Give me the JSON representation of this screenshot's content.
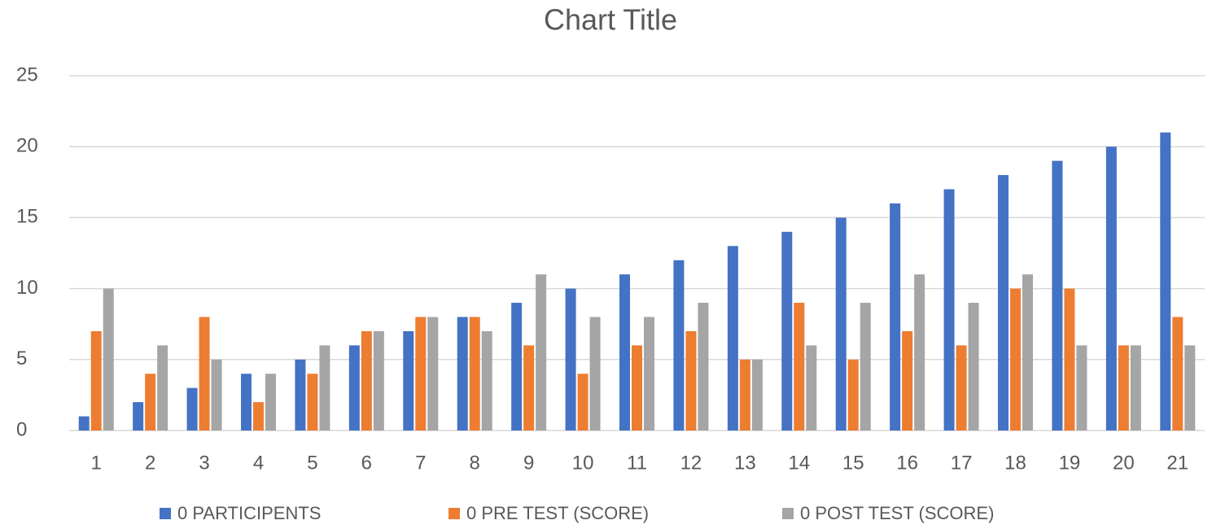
{
  "chart_data": {
    "type": "bar",
    "title": "Chart Title",
    "categories": [
      "1",
      "2",
      "3",
      "4",
      "5",
      "6",
      "7",
      "8",
      "9",
      "10",
      "11",
      "12",
      "13",
      "14",
      "15",
      "16",
      "17",
      "18",
      "19",
      "20",
      "21"
    ],
    "series": [
      {
        "name": "0 PARTICIPENTS",
        "color": "#4472c4",
        "values": [
          1,
          2,
          3,
          4,
          5,
          6,
          7,
          8,
          9,
          10,
          11,
          12,
          13,
          14,
          15,
          16,
          17,
          18,
          19,
          20,
          21
        ]
      },
      {
        "name": "0 PRE TEST (SCORE)",
        "color": "#ed7d31",
        "values": [
          7,
          4,
          8,
          2,
          4,
          7,
          8,
          8,
          6,
          4,
          6,
          7,
          5,
          9,
          5,
          7,
          6,
          10,
          10,
          6,
          8
        ]
      },
      {
        "name": "0 POST TEST (SCORE)",
        "color": "#a5a5a5",
        "values": [
          10,
          6,
          5,
          4,
          6,
          7,
          8,
          7,
          11,
          8,
          8,
          9,
          5,
          6,
          9,
          11,
          9,
          11,
          6,
          6,
          6
        ]
      }
    ],
    "ylim": [
      0,
      25
    ],
    "yticks": [
      0,
      5,
      10,
      15,
      20,
      25
    ],
    "grid": true,
    "legend": "bottom"
  }
}
